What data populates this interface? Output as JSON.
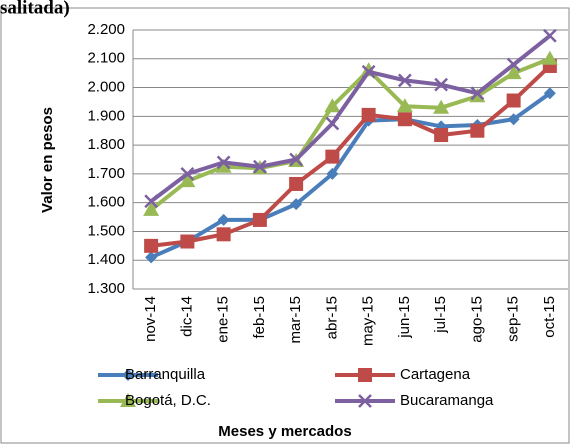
{
  "chart_data": {
    "type": "line",
    "title": "salitada)",
    "y_label": "Valor en pesos",
    "x_label": "Meses y mercados",
    "categories": [
      "nov-14",
      "dic-14",
      "ene-15",
      "feb-15",
      "mar-15",
      "abr-15",
      "may-15",
      "jun-15",
      "jul-15",
      "ago-15",
      "sep-15",
      "oct-15"
    ],
    "series": [
      {
        "name": "Barranquilla",
        "color": "#4a7ebb",
        "marker": "diamond",
        "values": [
          1410,
          1465,
          1540,
          1540,
          1595,
          1700,
          1885,
          1890,
          1865,
          1870,
          1890,
          1980
        ]
      },
      {
        "name": "Cartagena",
        "color": "#be4b48",
        "marker": "square",
        "values": [
          1450,
          1465,
          1490,
          1540,
          1665,
          1760,
          1905,
          1890,
          1835,
          1850,
          1955,
          2075
        ]
      },
      {
        "name": "Bogotá, D.C.",
        "color": "#98b954",
        "marker": "triangle",
        "values": [
          1575,
          1675,
          1725,
          1720,
          1745,
          1935,
          2060,
          1935,
          1930,
          1970,
          2050,
          2100
        ]
      },
      {
        "name": "Bucaramanga",
        "color": "#7d60a0",
        "marker": "x",
        "values": [
          1605,
          1700,
          1740,
          1725,
          1750,
          1875,
          2055,
          2025,
          2010,
          1980,
          2080,
          2180
        ]
      }
    ],
    "ylim": [
      1300,
      2200
    ],
    "yticks": [
      {
        "value": 1300,
        "label": "1.300"
      },
      {
        "value": 1400,
        "label": "1.400"
      },
      {
        "value": 1500,
        "label": "1.500"
      },
      {
        "value": 1600,
        "label": "1.600"
      },
      {
        "value": 1700,
        "label": "1.700"
      },
      {
        "value": 1800,
        "label": "1.800"
      },
      {
        "value": 1900,
        "label": "1.900"
      },
      {
        "value": 2000,
        "label": "2.000"
      },
      {
        "value": 2100,
        "label": "2.100"
      },
      {
        "value": 2200,
        "label": "2.200"
      }
    ],
    "grid": true,
    "legend": "bottom"
  }
}
